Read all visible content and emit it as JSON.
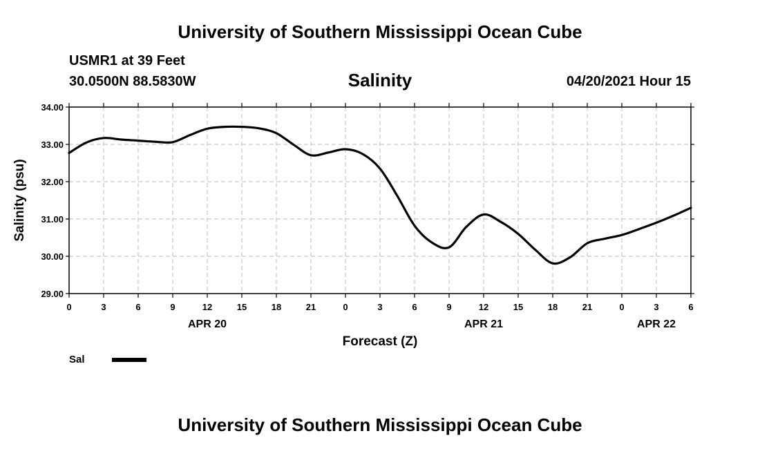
{
  "page": {
    "title_top": "University of Southern Mississippi Ocean Cube",
    "title_bottom": "University of Southern Mississippi Ocean Cube",
    "station": "USMR1 at 39 Feet",
    "coords": "30.0500N  88.5830W",
    "variable": "Salinity",
    "datetime": "04/20/2021 Hour 15"
  },
  "chart_data": {
    "type": "line",
    "title": "Salinity",
    "xlabel": "Forecast (Z)",
    "ylabel": "Salinity (psu)",
    "ylim": [
      29.0,
      34.0
    ],
    "xlim": [
      0,
      54
    ],
    "grid": true,
    "y_ticks": [
      "29.00",
      "30.00",
      "31.00",
      "32.00",
      "33.00",
      "34.00"
    ],
    "x_ticks": [
      "0",
      "3",
      "6",
      "9",
      "12",
      "15",
      "18",
      "21",
      "0",
      "3",
      "6",
      "9",
      "12",
      "15",
      "18",
      "21",
      "0",
      "3",
      "6"
    ],
    "date_labels": [
      {
        "label": "APR 20",
        "hour": 12
      },
      {
        "label": "APR 21",
        "hour": 36
      },
      {
        "label": "APR 22",
        "hour": 51
      }
    ],
    "legend": [
      {
        "name": "Sal",
        "color": "#000000"
      }
    ],
    "series": [
      {
        "name": "Sal",
        "color": "#000000",
        "x": [
          0,
          1.5,
          3,
          4.5,
          6,
          7.5,
          9,
          10.5,
          12,
          13.5,
          15,
          16.5,
          18,
          19.5,
          21,
          22.5,
          24,
          25.5,
          27,
          28.5,
          30,
          31.5,
          33,
          34.5,
          36,
          37.5,
          39,
          40.5,
          42,
          43.5,
          45,
          46.5,
          48,
          49.5,
          51,
          52.5,
          54
        ],
        "values": [
          32.77,
          33.05,
          33.17,
          33.13,
          33.1,
          33.07,
          33.06,
          33.25,
          33.42,
          33.47,
          33.47,
          33.43,
          33.3,
          32.99,
          32.71,
          32.78,
          32.87,
          32.74,
          32.35,
          31.62,
          30.82,
          30.37,
          30.24,
          30.79,
          31.12,
          30.92,
          30.6,
          30.17,
          29.81,
          29.97,
          30.35,
          30.47,
          30.57,
          30.73,
          30.9,
          31.09,
          31.3
        ]
      }
    ]
  }
}
